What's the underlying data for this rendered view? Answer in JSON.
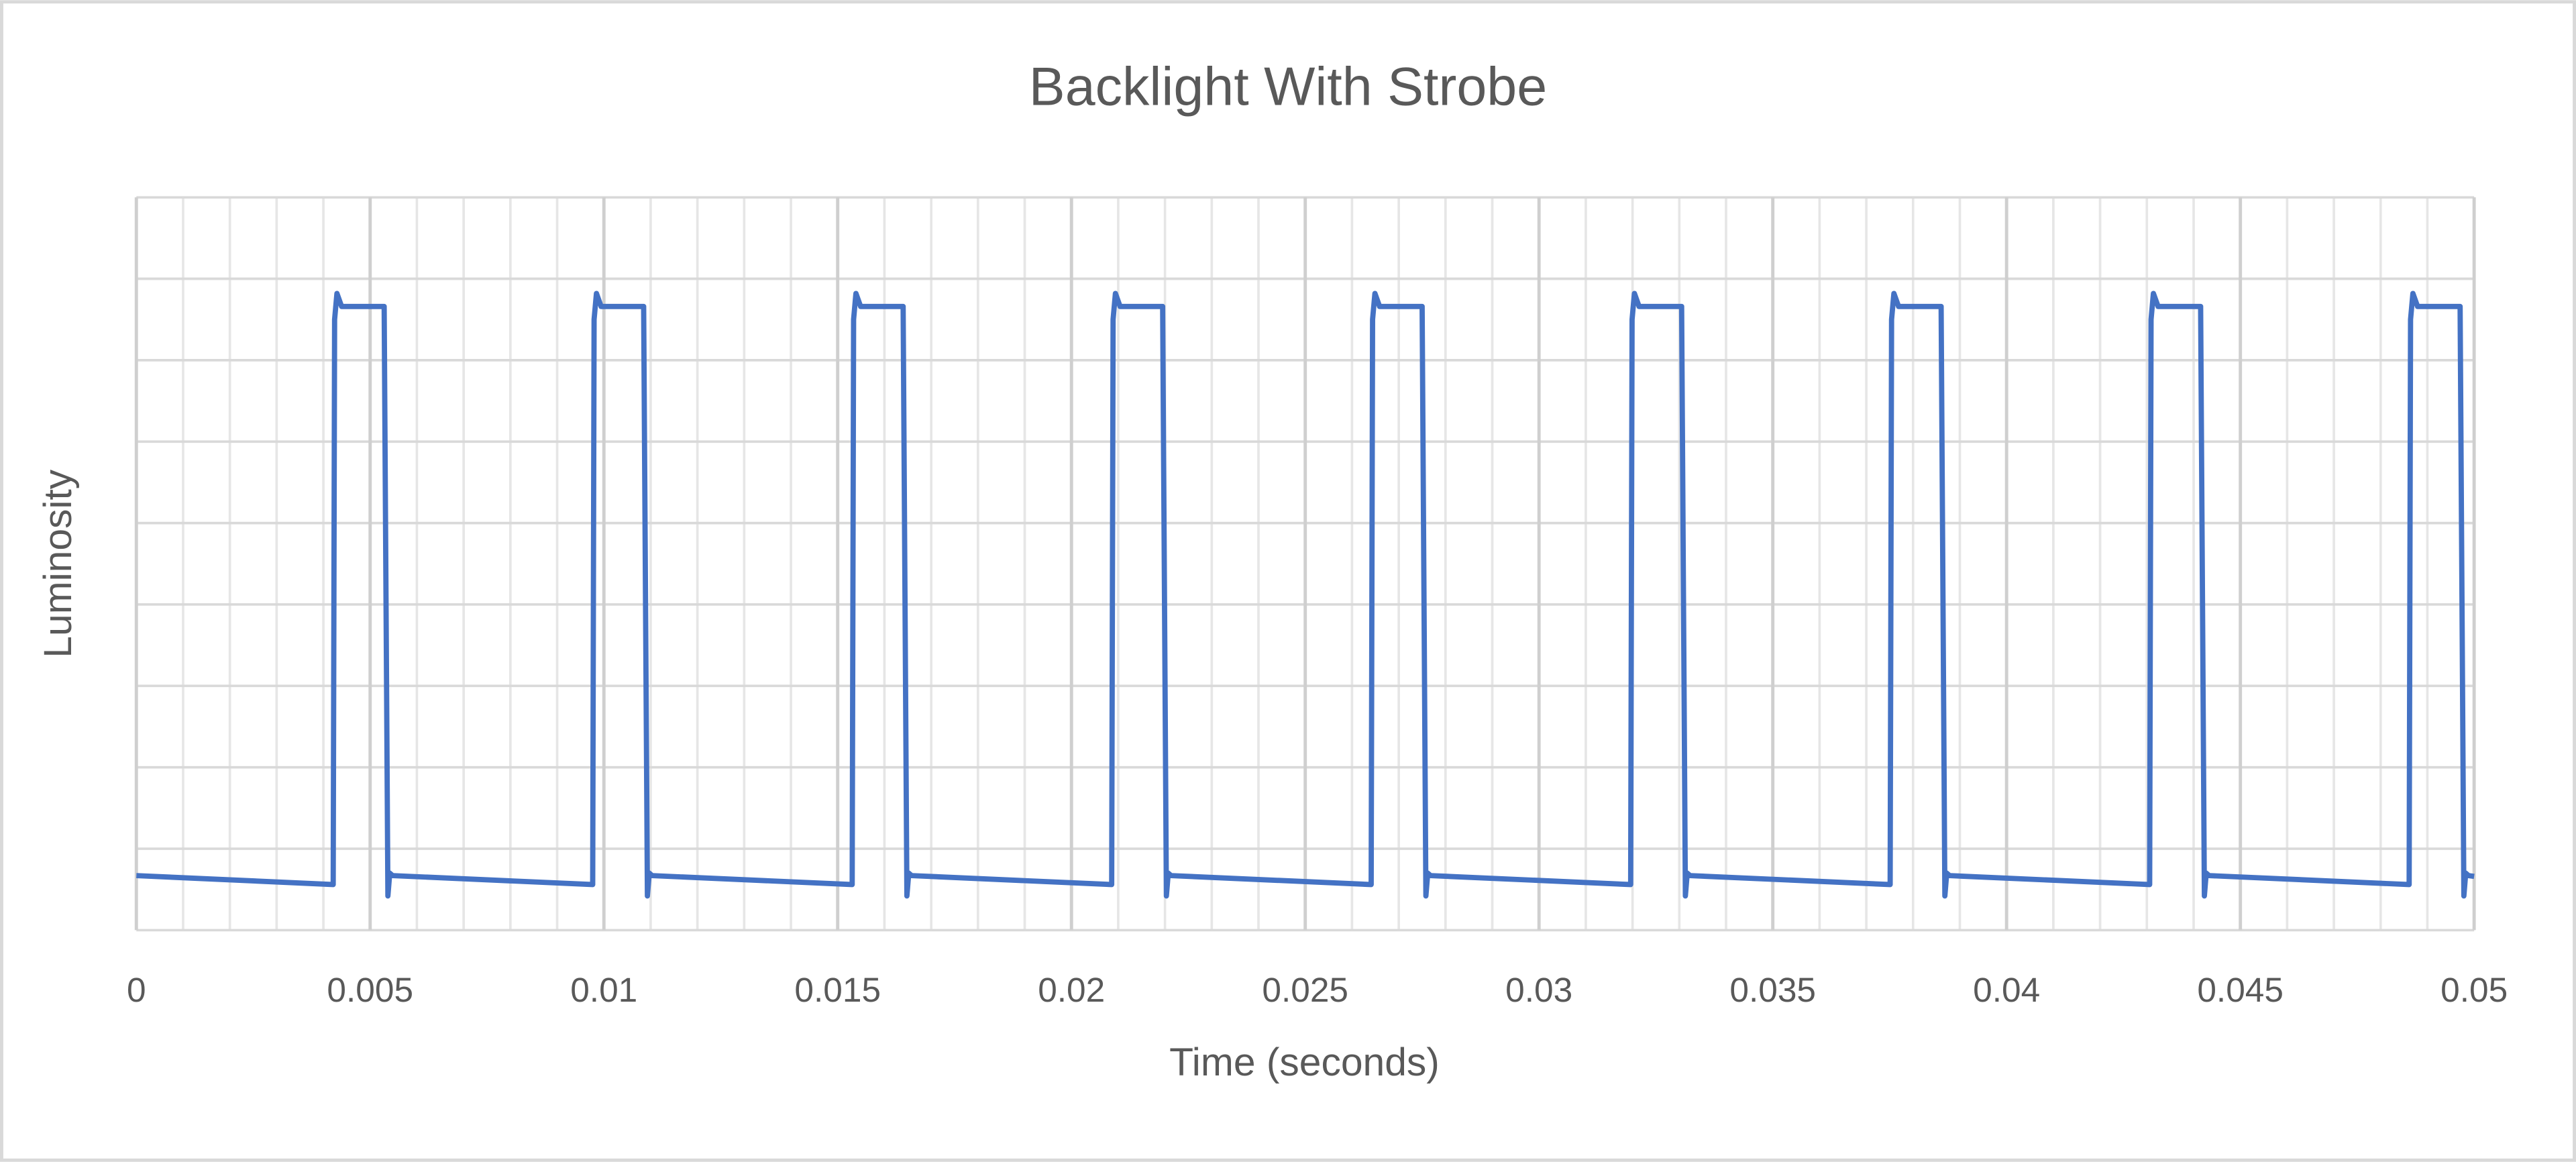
{
  "chart_data": {
    "type": "line",
    "title": "Backlight With Strobe",
    "x_label": "Time (seconds)",
    "y_label": "Luminosity",
    "x": [
      0,
      0.00421,
      0.00424,
      0.00429,
      0.00439,
      0.0053,
      0.00538,
      0.00542,
      0.00548,
      0.00976,
      0.00979,
      0.00984,
      0.00994,
      0.01085,
      0.01093,
      0.01097,
      0.01103,
      0.01531,
      0.01534,
      0.01539,
      0.01549,
      0.0164,
      0.01648,
      0.01652,
      0.01658,
      0.02086,
      0.02089,
      0.02094,
      0.02104,
      0.02195,
      0.02203,
      0.02207,
      0.02213,
      0.02641,
      0.02644,
      0.02649,
      0.02659,
      0.0275,
      0.02758,
      0.02762,
      0.02768,
      0.03196,
      0.03199,
      0.03204,
      0.03214,
      0.03305,
      0.03313,
      0.03317,
      0.03323,
      0.03751,
      0.03754,
      0.03759,
      0.03769,
      0.0386,
      0.03868,
      0.03872,
      0.03878,
      0.04306,
      0.04309,
      0.04314,
      0.04324,
      0.04415,
      0.04423,
      0.04427,
      0.04433,
      0.04861,
      0.04864,
      0.04869,
      0.04879,
      0.0497,
      0.04978,
      0.04982,
      0.04988,
      0.05
    ],
    "values": [
      0.67,
      0.56,
      7.5,
      7.82,
      7.66,
      7.66,
      0.42,
      0.7,
      0.67,
      0.56,
      7.5,
      7.82,
      7.66,
      7.66,
      0.42,
      0.7,
      0.67,
      0.56,
      7.5,
      7.82,
      7.66,
      7.66,
      0.42,
      0.7,
      0.67,
      0.56,
      7.5,
      7.82,
      7.66,
      7.66,
      0.42,
      0.7,
      0.67,
      0.56,
      7.5,
      7.82,
      7.66,
      7.66,
      0.42,
      0.7,
      0.67,
      0.56,
      7.5,
      7.82,
      7.66,
      7.66,
      0.42,
      0.7,
      0.67,
      0.56,
      7.5,
      7.82,
      7.66,
      7.66,
      0.42,
      0.7,
      0.67,
      0.56,
      7.5,
      7.82,
      7.66,
      7.66,
      0.42,
      0.7,
      0.67,
      0.56,
      7.5,
      7.82,
      7.66,
      7.66,
      0.42,
      0.7,
      0.67,
      0.66
    ],
    "color": "#4472c4",
    "xlim": [
      0,
      0.05
    ],
    "xticks": [
      0,
      0.005,
      0.01,
      0.015,
      0.02,
      0.025,
      0.03,
      0.035,
      0.04,
      0.045,
      0.05
    ],
    "ylim": [
      0,
      9
    ],
    "yticks": [
      0,
      1,
      2,
      3,
      4,
      5,
      6,
      7,
      8,
      9
    ],
    "ytick_labels": false,
    "grid": true,
    "minor_grid": true
  }
}
